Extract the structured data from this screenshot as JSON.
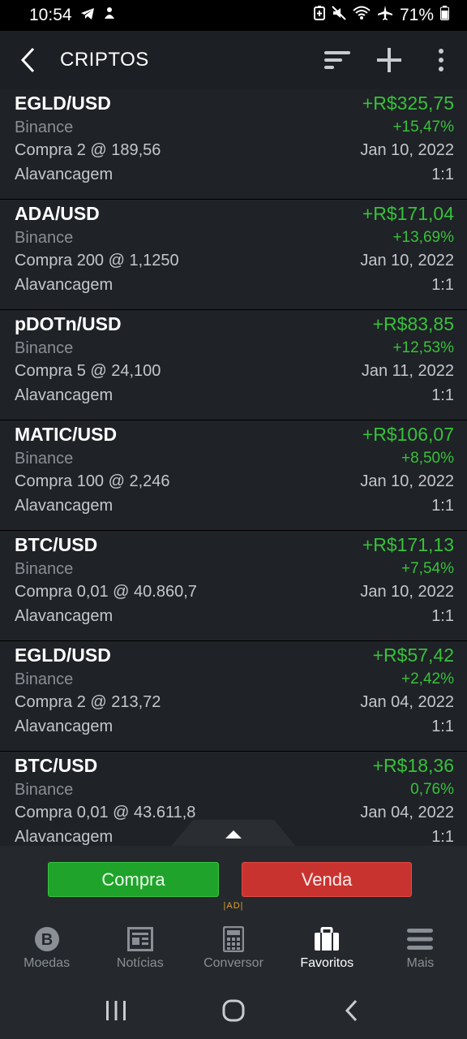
{
  "status_bar": {
    "time": "10:54",
    "battery": "71%",
    "icons": [
      "telegram-icon",
      "notification-icon",
      "battery-saver-icon",
      "mute-icon",
      "wifi-icon",
      "airplane-icon",
      "battery-icon"
    ]
  },
  "app_bar": {
    "title": "CRIPTOS",
    "icons": [
      "back-icon",
      "sort-icon",
      "add-icon",
      "more-vert-icon"
    ]
  },
  "positions": [
    {
      "pair": "EGLD/USD",
      "exchange": "Binance",
      "trade": "Compra 2 @ 189,56",
      "pl": "+R$325,75",
      "pct": "+15,47%",
      "date": "Jan 10, 2022",
      "lev_label": "Alavancagem",
      "lev": "1:1"
    },
    {
      "pair": "ADA/USD",
      "exchange": "Binance",
      "trade": "Compra 200 @ 1,1250",
      "pl": "+R$171,04",
      "pct": "+13,69%",
      "date": "Jan 10, 2022",
      "lev_label": "Alavancagem",
      "lev": "1:1"
    },
    {
      "pair": "pDOTn/USD",
      "exchange": "Binance",
      "trade": "Compra 5 @ 24,100",
      "pl": "+R$83,85",
      "pct": "+12,53%",
      "date": "Jan 11, 2022",
      "lev_label": "Alavancagem",
      "lev": "1:1"
    },
    {
      "pair": "MATIC/USD",
      "exchange": "Binance",
      "trade": "Compra 100 @ 2,246",
      "pl": "+R$106,07",
      "pct": "+8,50%",
      "date": "Jan 10, 2022",
      "lev_label": "Alavancagem",
      "lev": "1:1"
    },
    {
      "pair": "BTC/USD",
      "exchange": "Binance",
      "trade": "Compra 0,01 @ 40.860,7",
      "pl": "+R$171,13",
      "pct": "+7,54%",
      "date": "Jan 10, 2022",
      "lev_label": "Alavancagem",
      "lev": "1:1"
    },
    {
      "pair": "EGLD/USD",
      "exchange": "Binance",
      "trade": "Compra 2 @ 213,72",
      "pl": "+R$57,42",
      "pct": "+2,42%",
      "date": "Jan 04, 2022",
      "lev_label": "Alavancagem",
      "lev": "1:1"
    },
    {
      "pair": "BTC/USD",
      "exchange": "Binance",
      "trade": "Compra 0,01 @ 43.611,8",
      "pl": "+R$18,36",
      "pct": "0,76%",
      "date": "Jan 04, 2022",
      "lev_label": "Alavancagem",
      "lev": "1:1"
    }
  ],
  "trade_bar": {
    "buy_label": "Compra",
    "sell_label": "Venda",
    "ad_label": "|AD|",
    "buy_color": "#20a32a",
    "sell_color": "#c9332f"
  },
  "bottom_nav": {
    "items": [
      {
        "label": "Moedas",
        "icon": "bitcoin-icon"
      },
      {
        "label": "Notícias",
        "icon": "newspaper-icon"
      },
      {
        "label": "Conversor",
        "icon": "calculator-icon"
      },
      {
        "label": "Favoritos",
        "icon": "briefcase-icon",
        "active": true
      },
      {
        "label": "Mais",
        "icon": "menu-icon"
      }
    ]
  },
  "colors": {
    "gain": "#37c13b",
    "background": "#1f2226",
    "app_bar": "#1c1f23"
  }
}
